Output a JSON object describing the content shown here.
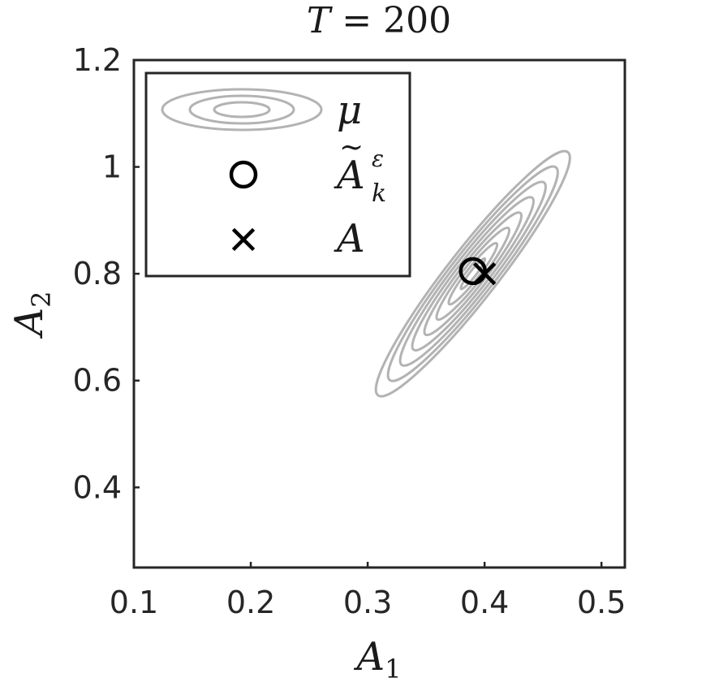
{
  "chart_data": {
    "type": "scatter",
    "title": "T = 200",
    "title_var": "T",
    "title_rest": " = 200",
    "xlabel": "A",
    "xlabel_sub": "1",
    "ylabel": "A",
    "ylabel_sub": "2",
    "xlim": [
      0.1,
      0.52
    ],
    "ylim": [
      0.25,
      1.2
    ],
    "xticks": [
      0.1,
      0.2,
      0.3,
      0.4,
      0.5
    ],
    "xtick_labels": [
      "0.1",
      "0.2",
      "0.3",
      "0.4",
      "0.5"
    ],
    "yticks": [
      0.4,
      0.6,
      0.8,
      1.0,
      1.2
    ],
    "ytick_labels": [
      "0.4",
      "0.6",
      "0.8",
      "1",
      "1.2"
    ],
    "grid": false,
    "legend_position": "top-left",
    "contours": {
      "series": "μ",
      "center": [
        0.39,
        0.8
      ],
      "color": "#b3b3b3",
      "levels": 8
    },
    "points": [
      {
        "series": "Ã_k^ε",
        "x": 0.39,
        "y": 0.805,
        "marker": "circle"
      },
      {
        "series": "A",
        "x": 0.4,
        "y": 0.8,
        "marker": "cross"
      }
    ],
    "legend": [
      {
        "label": "μ",
        "marker": "contour"
      },
      {
        "label": "A",
        "label_sup": "ε",
        "label_sub": "k",
        "label_tilde": true,
        "marker": "circle"
      },
      {
        "label": "A",
        "marker": "cross"
      }
    ]
  }
}
